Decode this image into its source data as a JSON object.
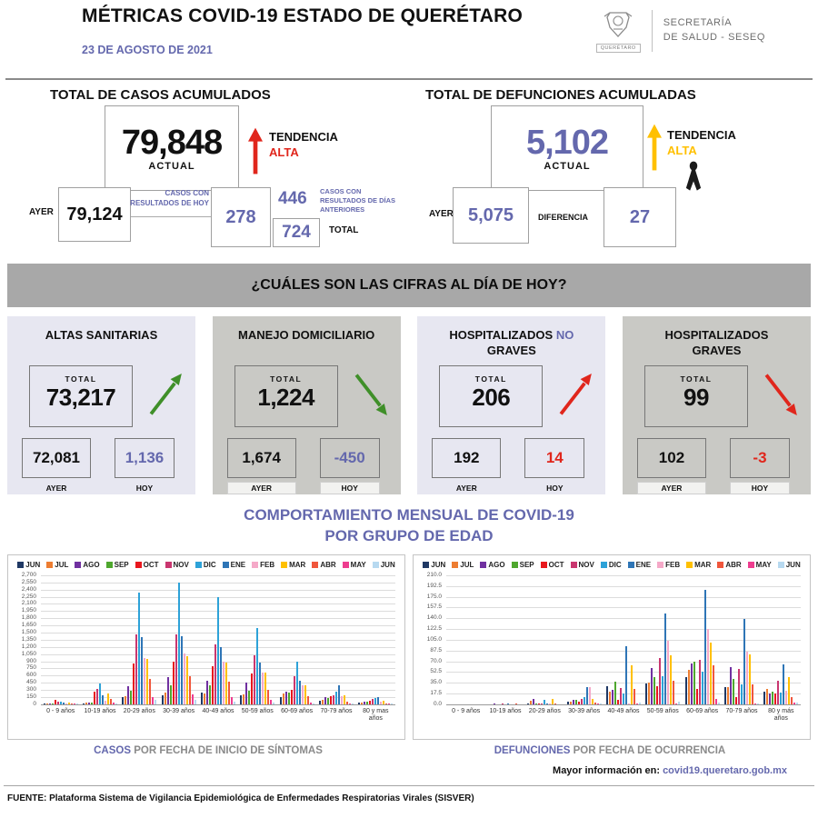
{
  "colors": {
    "accent": "#6468ad",
    "banner_gray": "#a8a8a8",
    "card_light": "#e7e7f1",
    "card_gray": "#c9c9c5"
  },
  "header": {
    "title": "MÉTRICAS COVID-19 ESTADO DE QUERÉTARO",
    "date": "23 DE AGOSTO DE 2021",
    "logo": {
      "org": "QUERÉTARO",
      "secretary_line1": "SECRETARÍA",
      "secretary_line2": "DE SALUD - SESEQ"
    }
  },
  "cases_panel": {
    "title": "TOTAL DE CASOS ACUMULADOS",
    "actual_value": "79,848",
    "actual_label": "ACTUAL",
    "trend_label": "TENDENCIA",
    "trend_value": "ALTA",
    "trend_color": "#e0261c",
    "ayer_label": "AYER",
    "ayer_value": "79,124",
    "today_results_label": "CASOS CON RESULTADOS DE HOY",
    "today_results_value": "278",
    "previous_days_value": "446",
    "previous_days_label": "CASOS CON RESULTADOS DE DÍAS ANTERIORES",
    "total_value": "724",
    "total_label": "TOTAL"
  },
  "deaths_panel": {
    "title": "TOTAL DE DEFUNCIONES ACUMULADAS",
    "actual_value": "5,102",
    "actual_label": "ACTUAL",
    "trend_label": "TENDENCIA",
    "trend_value": "ALTA",
    "trend_color": "#ffc000",
    "ayer_label": "AYER",
    "ayer_value": "5,075",
    "diferencia_label": "DIFERENCIA",
    "diferencia_value": "27"
  },
  "banner": {
    "question": "¿CUÁLES SON LAS CIFRAS AL DÍA DE HOY?"
  },
  "cards": [
    {
      "title_pre": "ALTAS SANITARIAS",
      "title_accent": "",
      "title_post": "",
      "total_label": "TOTAL",
      "total_value": "73,217",
      "ayer_value": "72,081",
      "hoy_value": "1,136",
      "ayer_label": "AYER",
      "hoy_label": "HOY",
      "trend": "up",
      "trend_color": "#3f8f29",
      "hoy_color": "#6468ad",
      "bg": "light"
    },
    {
      "title_pre": "MANEJO DOMICILIARIO",
      "title_accent": "",
      "title_post": "",
      "total_label": "TOTAL",
      "total_value": "1,224",
      "ayer_value": "1,674",
      "hoy_value": "-450",
      "ayer_label": "AYER",
      "hoy_label": "HOY",
      "trend": "down",
      "trend_color": "#3f8f29",
      "hoy_color": "#6468ad",
      "bg": "gray"
    },
    {
      "title_pre": "HOSPITALIZADOS",
      "title_accent": "NO",
      "title_post": "GRAVES",
      "total_label": "TOTAL",
      "total_value": "206",
      "ayer_value": "192",
      "hoy_value": "14",
      "ayer_label": "AYER",
      "hoy_label": "HOY",
      "trend": "up",
      "trend_color": "#e0261c",
      "hoy_color": "#e0261c",
      "bg": "light"
    },
    {
      "title_pre": "HOSPITALIZADOS",
      "title_accent": "",
      "title_post": "GRAVES",
      "total_label": "TOTAL",
      "total_value": "99",
      "ayer_value": "102",
      "hoy_value": "-3",
      "ayer_label": "AYER",
      "hoy_label": "HOY",
      "trend": "down",
      "trend_color": "#e0261c",
      "hoy_color": "#e0261c",
      "bg": "gray"
    }
  ],
  "charts_section": {
    "title_line1": "COMPORTAMIENTO MENSUAL DE COVID-19",
    "title_line2": "POR GRUPO DE EDAD",
    "left_caption_accent": "CASOS",
    "left_caption_rest": " POR FECHA DE INICIO DE SÍNTOMAS",
    "right_caption_accent": "DEFUNCIONES",
    "right_caption_rest": " POR FECHA DE OCURRENCIA"
  },
  "chart_data": [
    {
      "type": "bar",
      "title": "CASOS POR FECHA DE INICIO DE SÍNTOMAS",
      "categories": [
        "0 - 9 años",
        "10-19 años",
        "20-29 años",
        "30-39 años",
        "40-49 años",
        "50-59 años",
        "60-69 años",
        "70-79 años",
        "80 y mas años"
      ],
      "ylim": [
        0,
        2700
      ],
      "ymax": 2700,
      "grid": true,
      "legend_position": "top",
      "ytick_labels": [
        "0",
        "150",
        "300",
        "450",
        "600",
        "750",
        "900",
        "1,050",
        "1,200",
        "1,350",
        "1,500",
        "1,650",
        "1,800",
        "1,950",
        "2,100",
        "2,250",
        "2,400",
        "2,550",
        "2,700"
      ],
      "series": [
        {
          "name": "JUN",
          "color": "#1f3864",
          "values": [
            10,
            25,
            150,
            190,
            240,
            190,
            150,
            75,
            30
          ]
        },
        {
          "name": "JUL",
          "color": "#ed7d31",
          "values": [
            15,
            35,
            165,
            250,
            230,
            200,
            230,
            90,
            45
          ]
        },
        {
          "name": "AGO",
          "color": "#7030a0",
          "values": [
            20,
            45,
            370,
            560,
            490,
            450,
            270,
            150,
            60
          ]
        },
        {
          "name": "SEP",
          "color": "#4ea72e",
          "values": [
            20,
            45,
            280,
            390,
            390,
            280,
            250,
            140,
            50
          ]
        },
        {
          "name": "OCT",
          "color": "#e8171d",
          "values": [
            95,
            255,
            860,
            890,
            790,
            640,
            310,
            160,
            65
          ]
        },
        {
          "name": "NOV",
          "color": "#c9366f",
          "values": [
            55,
            330,
            1470,
            1460,
            1260,
            1020,
            590,
            190,
            110
          ]
        },
        {
          "name": "DIC",
          "color": "#2da2d8",
          "values": [
            60,
            440,
            2330,
            2540,
            2240,
            1600,
            890,
            260,
            140
          ]
        },
        {
          "name": "ENE",
          "color": "#2e75b6",
          "values": [
            45,
            185,
            1410,
            1420,
            1190,
            880,
            500,
            400,
            150
          ]
        },
        {
          "name": "FEB",
          "color": "#f5a9c8",
          "values": [
            20,
            80,
            960,
            1070,
            900,
            665,
            390,
            170,
            60
          ]
        },
        {
          "name": "MAR",
          "color": "#ffc000",
          "values": [
            30,
            220,
            940,
            1010,
            870,
            660,
            400,
            180,
            75
          ]
        },
        {
          "name": "ABR",
          "color": "#f0563c",
          "values": [
            25,
            110,
            530,
            580,
            470,
            310,
            170,
            50,
            25
          ]
        },
        {
          "name": "MAY",
          "color": "#ee3d8f",
          "values": [
            10,
            40,
            150,
            210,
            150,
            90,
            40,
            20,
            10
          ]
        },
        {
          "name": "JUN",
          "color": "#b7d9f0",
          "values": [
            5,
            15,
            90,
            90,
            60,
            40,
            20,
            10,
            5
          ]
        }
      ]
    },
    {
      "type": "bar",
      "title": "DEFUNCIONES POR FECHA DE OCURRENCIA",
      "categories": [
        "0 - 9 años",
        "10-19 años",
        "20-29 años",
        "30-39 años",
        "40-49 años",
        "50-59 años",
        "60-69 años",
        "70-79 años",
        "80 y más años"
      ],
      "ylim": [
        0,
        210
      ],
      "ymax": 210,
      "grid": true,
      "legend_position": "top",
      "ytick_labels": [
        "0.0",
        "17.5",
        "35.0",
        "52.5",
        "70.0",
        "87.5",
        "105.0",
        "122.5",
        "140.0",
        "157.5",
        "175.0",
        "192.5",
        "210.0"
      ],
      "series": [
        {
          "name": "JUN",
          "color": "#1f3864",
          "values": [
            0,
            0,
            2,
            5,
            29,
            34,
            44,
            28,
            20
          ]
        },
        {
          "name": "JUL",
          "color": "#ed7d31",
          "values": [
            0,
            0,
            6,
            5,
            20,
            36,
            56,
            28,
            25
          ]
        },
        {
          "name": "AGO",
          "color": "#7030a0",
          "values": [
            0,
            1,
            8,
            7,
            24,
            59,
            67,
            61,
            17
          ]
        },
        {
          "name": "SEP",
          "color": "#4ea72e",
          "values": [
            0,
            0,
            2,
            7,
            37,
            44,
            69,
            41,
            20
          ]
        },
        {
          "name": "OCT",
          "color": "#e8171d",
          "values": [
            0,
            0,
            2,
            5,
            7,
            29,
            25,
            12,
            17
          ]
        },
        {
          "name": "NOV",
          "color": "#c9366f",
          "values": [
            0,
            1,
            2,
            8,
            26,
            75,
            72,
            58,
            39
          ]
        },
        {
          "name": "DIC",
          "color": "#2da2d8",
          "values": [
            0,
            0,
            7,
            12,
            17,
            46,
            53,
            33,
            19
          ]
        },
        {
          "name": "ENE",
          "color": "#2e75b6",
          "values": [
            0,
            1,
            2,
            28,
            95,
            148,
            186,
            139,
            65
          ]
        },
        {
          "name": "FEB",
          "color": "#f5a9c8",
          "values": [
            0,
            0,
            1,
            28,
            2,
            103,
            123,
            85,
            22
          ]
        },
        {
          "name": "MAR",
          "color": "#ffc000",
          "values": [
            0,
            0,
            8,
            8,
            64,
            79,
            100,
            81,
            44
          ]
        },
        {
          "name": "ABR",
          "color": "#f0563c",
          "values": [
            0,
            1,
            1,
            3,
            25,
            38,
            63,
            33,
            11
          ]
        },
        {
          "name": "MAY",
          "color": "#ee3d8f",
          "values": [
            0,
            0,
            0,
            1,
            1,
            2,
            8,
            2,
            3
          ]
        },
        {
          "name": "JUN",
          "color": "#b7d9f0",
          "values": [
            0,
            0,
            0,
            1,
            3,
            5,
            3,
            2,
            3
          ]
        }
      ]
    }
  ],
  "footer": {
    "more_info_label": "Mayor información en:",
    "more_info_link": "covid19.queretaro.gob.mx",
    "source": "FUENTE: Plataforma Sistema  de Vigilancia Epidemiológica de Enfermedades Respiratorias Virales (SISVER)"
  }
}
